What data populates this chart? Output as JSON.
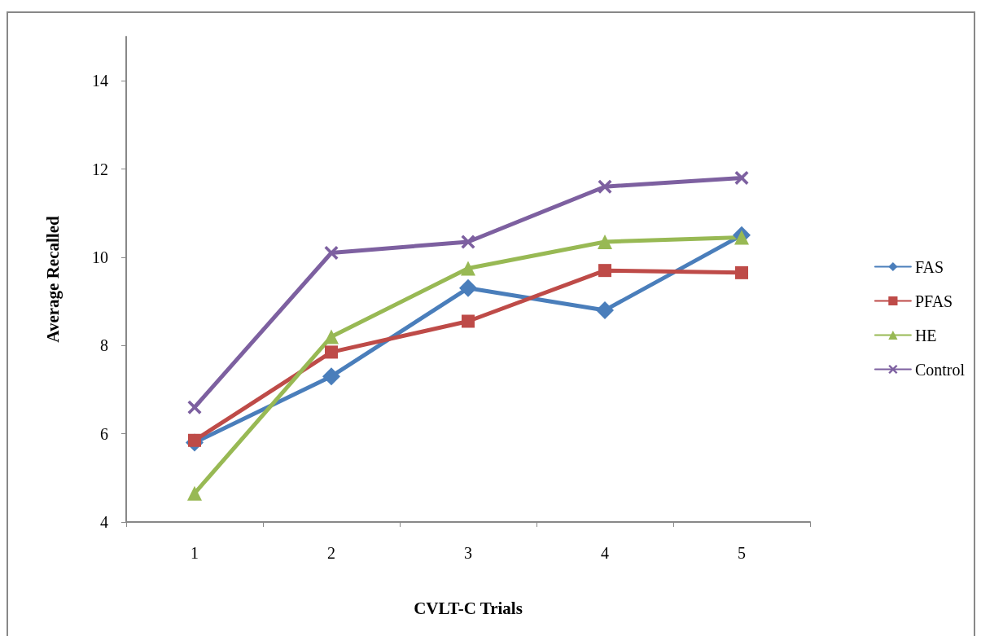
{
  "chart_data": {
    "type": "line",
    "xlabel": "CVLT-C Trials",
    "ylabel": "Average Recalled",
    "categories": [
      "1",
      "2",
      "3",
      "4",
      "5"
    ],
    "series": [
      {
        "name": "FAS",
        "color": "#4a7ebb",
        "marker": "diamond",
        "values": [
          5.8,
          7.3,
          9.3,
          8.8,
          10.5
        ]
      },
      {
        "name": "PFAS",
        "color": "#be4b48",
        "marker": "square",
        "values": [
          5.85,
          7.85,
          8.55,
          9.7,
          9.65
        ]
      },
      {
        "name": "HE",
        "color": "#98b954",
        "marker": "triangle",
        "values": [
          4.65,
          8.2,
          9.75,
          10.35,
          10.45
        ]
      },
      {
        "name": "Control",
        "color": "#7d60a0",
        "marker": "cross",
        "values": [
          6.6,
          10.1,
          10.35,
          11.6,
          11.8
        ]
      }
    ],
    "ylim": [
      4,
      15
    ],
    "yticks": [
      4,
      6,
      8,
      10,
      12,
      14
    ],
    "grid": false,
    "legend": "right",
    "line_style": "solid"
  }
}
